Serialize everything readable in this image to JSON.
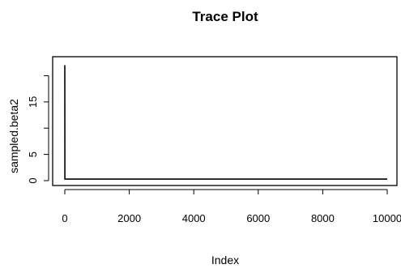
{
  "chart_data": {
    "type": "line",
    "title": "Trace Plot",
    "xlabel": "Index",
    "ylabel": "sampled.beta2",
    "xlim": [
      0,
      10000
    ],
    "ylim": [
      0,
      23
    ],
    "x_ticks": [
      0,
      2000,
      4000,
      6000,
      8000,
      10000
    ],
    "y_ticks": [
      0,
      5,
      10,
      15,
      20
    ],
    "y_tick_labels": [
      "0",
      "5",
      "",
      "15",
      ""
    ],
    "series": [
      {
        "x": [
          1,
          2,
          10000
        ],
        "y": [
          22.0,
          0.3,
          0.3
        ],
        "color": "#000000"
      }
    ],
    "grid": false,
    "legend": "none"
  }
}
